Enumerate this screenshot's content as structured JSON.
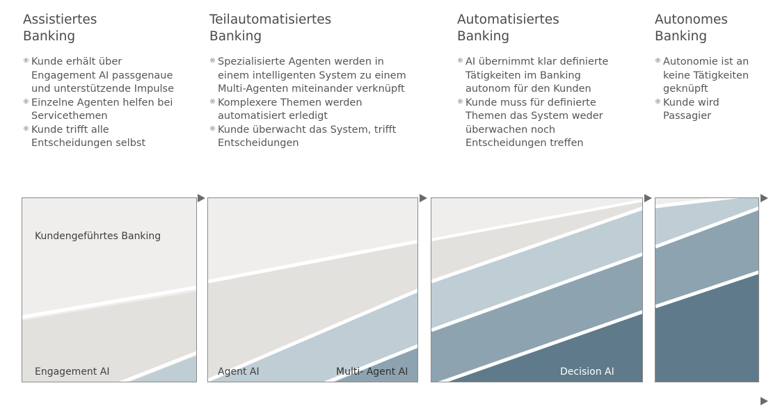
{
  "stages": [
    {
      "title_line1": "Assistiertes",
      "title_line2": "Banking",
      "bullets": [
        "Kunde erhält über Engagement AI passgenaue und unterstützende Impulse",
        "Einzelne Agenten helfen bei Servicethemen",
        "Kunde trifft alle Entscheidungen selbst"
      ]
    },
    {
      "title_line1": "Teilautomatisiertes",
      "title_line2": "Banking",
      "bullets": [
        "Spezialisierte Agenten werden in einem intelligenten System zu einem Multi-Agenten miteinander verknüpft",
        "Komplexere Themen werden automatisiert erledigt",
        "Kunde überwacht das System, trifft Entscheidungen"
      ]
    },
    {
      "title_line1": "Automatisiertes",
      "title_line2": "Banking",
      "bullets": [
        "AI übernimmt klar definierte Tätigkeiten im Banking autonom für den Kunden",
        "Kunde muss für definierte Themen das System weder überwachen noch Entscheidungen treffen"
      ]
    },
    {
      "title_line1": "Autonomes",
      "title_line2": "Banking",
      "bullets": [
        "Autonomie ist an keine Tätigkeiten geknüpft",
        "Kunde wird Passagier"
      ]
    }
  ],
  "band_labels": {
    "kundengefuehrt": "Kundengeführtes Banking",
    "engagement_ai": "Engagement AI",
    "agent_ai": "Agent AI",
    "multi_agent_ai": "Multi- Agent AI",
    "decision_ai": "Decision AI"
  },
  "colors": {
    "band_light": "#efeeed",
    "band_beige": "#e3e1dd",
    "band_lightblue": "#bfcdd5",
    "band_midblue": "#8da3b0",
    "band_darkblue": "#5f7a8a",
    "separator": "#ffffff",
    "border": "#8a8a8a",
    "arrow": "#6b6b6b"
  }
}
